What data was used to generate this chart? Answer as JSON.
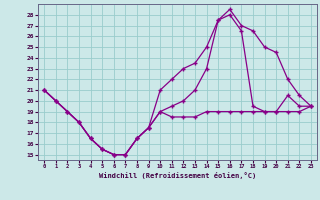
{
  "xlabel": "Windchill (Refroidissement éolien,°C)",
  "background_color": "#cce8e8",
  "grid_color": "#99cccc",
  "line_color": "#880088",
  "x_hours": [
    0,
    1,
    2,
    3,
    4,
    5,
    6,
    7,
    8,
    9,
    10,
    11,
    12,
    13,
    14,
    15,
    16,
    17,
    18,
    19,
    20,
    21,
    22,
    23
  ],
  "series1": [
    21.0,
    20.0,
    19.0,
    18.0,
    16.5,
    15.5,
    15.0,
    15.0,
    16.5,
    17.5,
    19.0,
    18.5,
    18.5,
    18.5,
    19.0,
    19.0,
    19.0,
    19.0,
    19.0,
    19.0,
    19.0,
    19.0,
    19.0,
    19.5
  ],
  "series2": [
    21.0,
    20.0,
    19.0,
    18.0,
    16.5,
    15.5,
    15.0,
    15.0,
    16.5,
    17.5,
    21.0,
    22.0,
    23.0,
    23.5,
    25.0,
    27.5,
    28.5,
    27.0,
    26.5,
    25.0,
    24.5,
    22.0,
    20.5,
    19.5
  ],
  "series3": [
    21.0,
    20.0,
    19.0,
    18.0,
    16.5,
    15.5,
    15.0,
    15.0,
    16.5,
    17.5,
    19.0,
    19.5,
    20.0,
    21.0,
    23.0,
    27.5,
    28.0,
    26.5,
    19.5,
    19.0,
    19.0,
    20.5,
    19.5,
    19.5
  ],
  "ylim": [
    14.5,
    29.0
  ],
  "yticks": [
    15,
    16,
    17,
    18,
    19,
    20,
    21,
    22,
    23,
    24,
    25,
    26,
    27,
    28
  ],
  "xticks": [
    0,
    1,
    2,
    3,
    4,
    5,
    6,
    7,
    8,
    9,
    10,
    11,
    12,
    13,
    14,
    15,
    16,
    17,
    18,
    19,
    20,
    21,
    22,
    23
  ]
}
